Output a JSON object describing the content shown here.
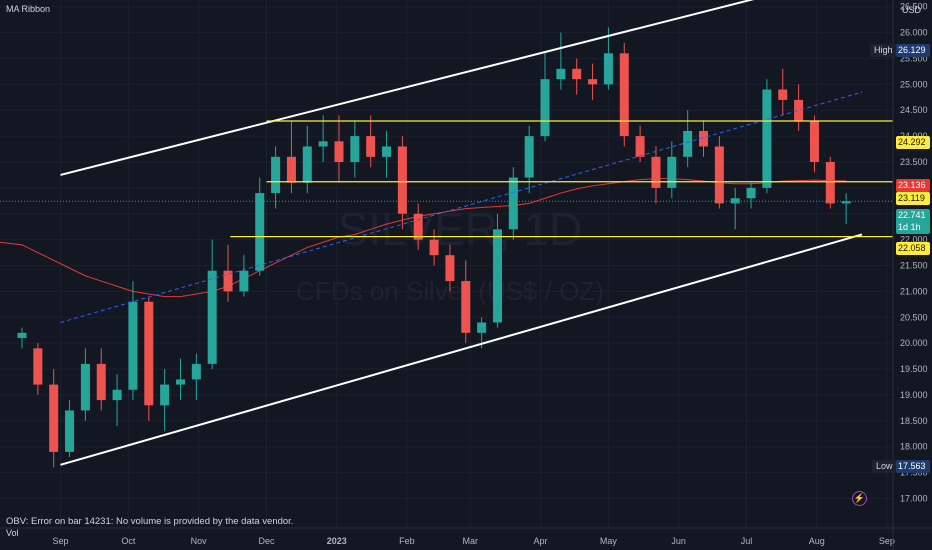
{
  "header": {
    "indicator": "MA Ribbon",
    "currency": "USD"
  },
  "footer": {
    "obv_error": "OBV: Error on bar 14231: No volume is provided by the data vendor.",
    "vol": "Vol"
  },
  "watermark": {
    "symbol": "SILVER, 1D",
    "description": "CFDs on Silver (US$ / OZ)"
  },
  "price_tags": {
    "high_label": "High",
    "high_value": "26.129",
    "low_label": "Low",
    "low_value": "17.563",
    "level_1": "24.292",
    "level_2": "23.119",
    "level_3": "22.058",
    "ma_value": "23.136",
    "current": "22.741",
    "countdown": "1d 1h"
  },
  "colors": {
    "background": "#131722",
    "up": "#26a69a",
    "down": "#ef5350",
    "ma": "#e53935",
    "support_resistance": "#ffeb3b",
    "channel": "#ffffff",
    "midline": "#2962ff"
  },
  "chart_data": {
    "type": "candlestick",
    "y_ticks": [
      17.0,
      17.5,
      18.0,
      18.5,
      19.0,
      19.5,
      20.0,
      20.5,
      21.0,
      21.5,
      22.0,
      22.5,
      23.0,
      23.5,
      24.0,
      24.5,
      25.0,
      25.5,
      26.0,
      26.5
    ],
    "y_tick_labels": [
      "17.000",
      "17.500",
      "18.000",
      "18.500",
      "19.000",
      "19.500",
      "20.000",
      "20.500",
      "21.000",
      "21.500",
      "22.000",
      "22.500",
      "23.000",
      "23.500",
      "24.000",
      "24.500",
      "25.000",
      "25.500",
      "26.000",
      "26.500"
    ],
    "x_ticks": [
      "Sep",
      "Oct",
      "Nov",
      "Dec",
      "2023",
      "Feb",
      "Mar",
      "Apr",
      "May",
      "Jun",
      "Jul",
      "Aug",
      "Sep"
    ],
    "ylim": [
      16.7,
      26.9
    ],
    "date_range": [
      "2022-08-15",
      "2023-08-21"
    ],
    "horizontal_levels": [
      {
        "value": 24.292,
        "from": "2022-12-01",
        "to": "2023-08-21"
      },
      {
        "value": 23.119,
        "from": "2022-12-01",
        "to": "2023-08-21"
      },
      {
        "value": 22.058,
        "from": "2022-11-15",
        "to": "2023-08-21"
      }
    ],
    "channel_upper": [
      [
        "2022-09-01",
        23.25
      ],
      [
        "2023-07-27",
        26.9
      ]
    ],
    "channel_lower": [
      [
        "2022-09-01",
        17.65
      ],
      [
        "2023-08-21",
        22.1
      ]
    ],
    "channel_mid": [
      [
        "2022-09-01",
        20.4
      ],
      [
        "2023-08-21",
        24.85
      ]
    ],
    "moving_average": [
      [
        21.9,
        21.75,
        21.6,
        21.45,
        21.3,
        21.2,
        21.1,
        21.0,
        20.95,
        20.9,
        20.9,
        20.95,
        21.0,
        21.1,
        21.25,
        21.4,
        21.55,
        21.7,
        21.85,
        21.95,
        22.05,
        22.1,
        22.2,
        22.3,
        22.38,
        22.45,
        22.5,
        22.55,
        22.6,
        22.62,
        22.64,
        22.66,
        22.7,
        22.8,
        22.9,
        22.98,
        23.04,
        23.08,
        23.12,
        23.16,
        23.18,
        23.18,
        23.16,
        23.13,
        23.1,
        23.08,
        23.08,
        23.1,
        23.13,
        23.14,
        23.15,
        23.14,
        23.136
      ]
    ],
    "candles": [
      [
        "2022-08-15",
        20.1,
        20.3,
        19.9,
        20.2
      ],
      [
        "2022-08-22",
        19.9,
        20.0,
        19.0,
        19.2
      ],
      [
        "2022-08-29",
        19.2,
        19.5,
        17.6,
        17.9
      ],
      [
        "2022-09-05",
        17.9,
        18.9,
        17.8,
        18.7
      ],
      [
        "2022-09-12",
        18.7,
        19.9,
        18.5,
        19.6
      ],
      [
        "2022-09-19",
        19.6,
        19.9,
        18.7,
        18.9
      ],
      [
        "2022-09-26",
        18.9,
        19.4,
        18.4,
        19.1
      ],
      [
        "2022-10-03",
        19.1,
        21.2,
        18.9,
        20.8
      ],
      [
        "2022-10-10",
        20.8,
        20.9,
        18.5,
        18.8
      ],
      [
        "2022-10-17",
        18.8,
        19.5,
        18.3,
        19.2
      ],
      [
        "2022-10-24",
        19.2,
        19.7,
        18.9,
        19.3
      ],
      [
        "2022-10-31",
        19.3,
        19.8,
        18.9,
        19.6
      ],
      [
        "2022-11-07",
        19.6,
        22.0,
        19.5,
        21.4
      ],
      [
        "2022-11-14",
        21.4,
        21.9,
        20.8,
        21.0
      ],
      [
        "2022-11-21",
        21.0,
        21.7,
        20.9,
        21.4
      ],
      [
        "2022-11-28",
        21.4,
        23.2,
        21.3,
        22.9
      ],
      [
        "2022-12-05",
        22.9,
        23.8,
        22.6,
        23.6
      ],
      [
        "2022-12-12",
        23.6,
        24.3,
        22.9,
        23.1
      ],
      [
        "2022-12-19",
        23.1,
        24.2,
        22.9,
        23.8
      ],
      [
        "2022-12-26",
        23.8,
        24.4,
        23.5,
        23.9
      ],
      [
        "2023-01-02",
        23.9,
        24.4,
        23.1,
        23.5
      ],
      [
        "2023-01-09",
        23.5,
        24.3,
        23.2,
        24.0
      ],
      [
        "2023-01-16",
        24.0,
        24.4,
        23.4,
        23.6
      ],
      [
        "2023-01-23",
        23.6,
        24.1,
        23.2,
        23.8
      ],
      [
        "2023-01-30",
        23.8,
        24.0,
        22.2,
        22.5
      ],
      [
        "2023-02-06",
        22.5,
        22.7,
        21.8,
        22.0
      ],
      [
        "2023-02-13",
        22.0,
        22.2,
        21.5,
        21.7
      ],
      [
        "2023-02-20",
        21.7,
        21.9,
        21.0,
        21.2
      ],
      [
        "2023-02-27",
        21.2,
        21.6,
        20.0,
        20.2
      ],
      [
        "2023-03-06",
        20.2,
        20.5,
        19.9,
        20.4
      ],
      [
        "2023-03-13",
        20.4,
        22.5,
        20.3,
        22.2
      ],
      [
        "2023-03-20",
        22.2,
        23.4,
        22.0,
        23.2
      ],
      [
        "2023-03-27",
        23.2,
        24.2,
        22.9,
        24.0
      ],
      [
        "2023-04-03",
        24.0,
        25.6,
        23.9,
        25.1
      ],
      [
        "2023-04-10",
        25.1,
        26.0,
        24.9,
        25.3
      ],
      [
        "2023-04-17",
        25.3,
        25.5,
        24.8,
        25.1
      ],
      [
        "2023-04-24",
        25.1,
        25.4,
        24.7,
        25.0
      ],
      [
        "2023-05-01",
        25.0,
        26.1,
        24.9,
        25.6
      ],
      [
        "2023-05-08",
        25.6,
        25.8,
        23.8,
        24.0
      ],
      [
        "2023-05-15",
        24.0,
        24.2,
        23.5,
        23.6
      ],
      [
        "2023-05-22",
        23.6,
        23.8,
        22.7,
        23.0
      ],
      [
        "2023-05-29",
        23.0,
        23.9,
        22.8,
        23.6
      ],
      [
        "2023-06-05",
        23.6,
        24.5,
        23.4,
        24.1
      ],
      [
        "2023-06-12",
        24.1,
        24.3,
        23.6,
        23.8
      ],
      [
        "2023-06-19",
        23.8,
        24.0,
        22.6,
        22.7
      ],
      [
        "2023-06-26",
        22.7,
        23.0,
        22.2,
        22.8
      ],
      [
        "2023-07-03",
        22.8,
        23.1,
        22.6,
        23.0
      ],
      [
        "2023-07-10",
        23.0,
        25.1,
        22.9,
        24.9
      ],
      [
        "2023-07-17",
        24.9,
        25.3,
        24.4,
        24.7
      ],
      [
        "2023-07-24",
        24.7,
        25.0,
        24.1,
        24.3
      ],
      [
        "2023-07-31",
        24.3,
        24.4,
        23.3,
        23.5
      ],
      [
        "2023-08-07",
        23.5,
        23.6,
        22.6,
        22.7
      ],
      [
        "2023-08-14",
        22.7,
        22.9,
        22.3,
        22.741
      ]
    ]
  }
}
